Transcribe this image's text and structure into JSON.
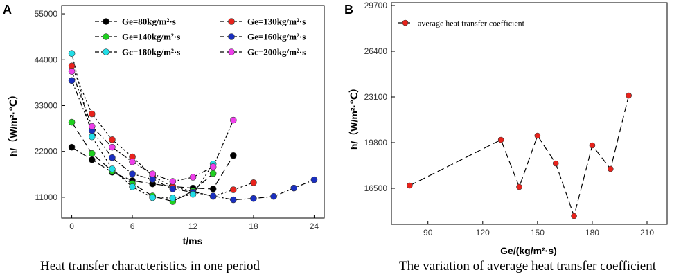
{
  "chart_data": [
    {
      "panel": "A",
      "type": "line",
      "xlabel": "t/ms",
      "ylabel": "h/（W/m²·℃）",
      "xticks": [
        0,
        6,
        12,
        18,
        24
      ],
      "yticks": [
        11000,
        22000,
        33000,
        44000,
        55000
      ],
      "xlim": [
        -1,
        25
      ],
      "ylim": [
        6000,
        57000
      ],
      "caption": "Heat transfer characteristics in one period",
      "series": [
        {
          "name": "Ge=80kg/m²·s",
          "color": "#000000",
          "dash": "10,5",
          "x": [
            0,
            2,
            4,
            6,
            8,
            10,
            12,
            14,
            16
          ],
          "y": [
            23000,
            20000,
            17000,
            15000,
            14200,
            13600,
            13200,
            13000,
            21000
          ]
        },
        {
          "name": "Ge=130kg/m²·s",
          "color": "#e8231c",
          "dash": "3,3",
          "x": [
            0,
            2,
            4,
            6,
            8,
            10,
            12,
            14,
            16,
            18
          ],
          "y": [
            42500,
            31000,
            24800,
            20700,
            16100,
            13500,
            12400,
            11200,
            12800,
            14500
          ]
        },
        {
          "name": "Ge=140kg/m²·s",
          "color": "#1fcf1f",
          "dash": "10,5",
          "x": [
            0,
            2,
            4,
            6,
            8,
            10,
            12,
            14
          ],
          "y": [
            29000,
            21500,
            17300,
            14300,
            11300,
            10000,
            12500,
            16700
          ]
        },
        {
          "name": "Ge=160kg/m²·s",
          "color": "#1a2fbf",
          "dash": "8,3,2,3",
          "x": [
            0,
            2,
            4,
            6,
            8,
            10,
            12,
            14,
            16,
            18,
            20,
            22,
            24
          ],
          "y": [
            39000,
            27000,
            20500,
            16600,
            15300,
            13000,
            12200,
            11300,
            10400,
            10700,
            11200,
            13200,
            15200
          ]
        },
        {
          "name": "Gc=180kg/m²·s",
          "color": "#22dde6",
          "dash": "3,3",
          "x": [
            0,
            2,
            4,
            6,
            8,
            10,
            12,
            14
          ],
          "y": [
            45500,
            25500,
            17800,
            13500,
            10900,
            10800,
            11700,
            19000
          ]
        },
        {
          "name": "Gc=200kg/m²·s",
          "color": "#ee3fea",
          "dash": "8,3,2,3",
          "x": [
            0,
            2,
            4,
            6,
            8,
            10,
            12,
            14,
            16
          ],
          "y": [
            41200,
            28000,
            23000,
            19500,
            16600,
            14800,
            15800,
            18300,
            29500
          ]
        }
      ]
    },
    {
      "panel": "B",
      "type": "line",
      "xlabel": "Ge/(kg/m²·s)",
      "ylabel": "h/（W/m²·℃）",
      "xticks": [
        90,
        120,
        150,
        180,
        210
      ],
      "yticks": [
        16500,
        19800,
        23100,
        26400,
        29700
      ],
      "xlim": [
        70,
        221
      ],
      "ylim": [
        13900,
        29900
      ],
      "caption": "The variation of average heat transfer coefficient",
      "series": [
        {
          "name": "average heat transfer coefficient",
          "color": "#e8231c",
          "dash": "10,5",
          "x": [
            80,
            130,
            140,
            150,
            160,
            170,
            180,
            190,
            200
          ],
          "y": [
            16700,
            20000,
            16600,
            20300,
            18300,
            14500,
            19600,
            17900,
            23200
          ]
        }
      ]
    }
  ]
}
